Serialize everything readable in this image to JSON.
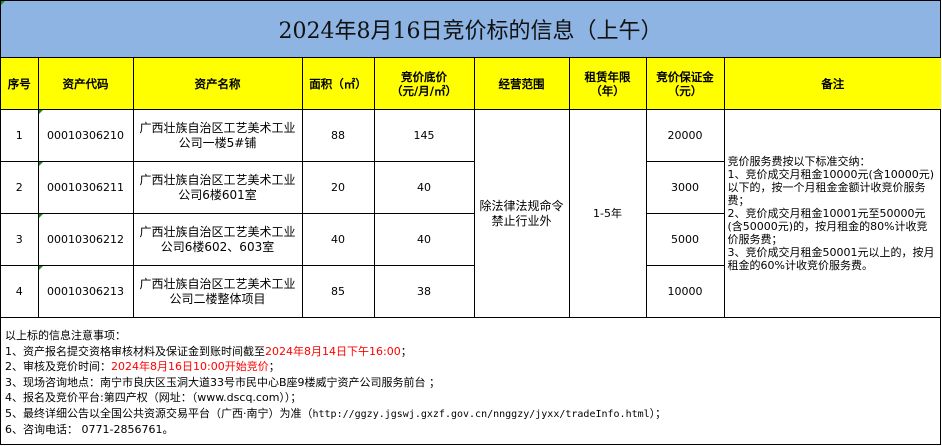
{
  "title": "2024年8月16日竞价标的信息（上午）",
  "headers": [
    "序号",
    "资产代码",
    "资产名称",
    "面积（㎡）",
    "竞价底价\n（元/月/㎡）",
    "经营范围",
    "租赁年限\n（年）",
    "竞价保证金\n（元）",
    "备注"
  ],
  "rows": [
    {
      "no": "1",
      "code": "00010306210",
      "name": "广西壮族自治区工艺美术工业公司一楼5#铺",
      "area": "88",
      "price": "145",
      "deposit": "20000"
    },
    {
      "no": "2",
      "code": "00010306211",
      "name": "广西壮族自治区工艺美术工业公司6楼601室",
      "area": "20",
      "price": "40",
      "deposit": "3000"
    },
    {
      "no": "3",
      "code": "00010306212",
      "name": "广西壮族自治区工艺美术工业公司6楼602、603室",
      "area": "40",
      "price": "40",
      "deposit": "5000"
    },
    {
      "no": "4",
      "code": "00010306213",
      "name": "广西壮族自治区工艺美术工业公司二楼整体项目",
      "area": "85",
      "price": "38",
      "deposit": "10000"
    }
  ],
  "scope": "除法律法规命令禁止行业外",
  "term": "1-5年",
  "remark": "竞价服务费按以下标准交纳：\n1、竞价成交月租金10000元(含10000元)以下的，按一个月租金金额计收竞价服务费；\n2、竞价成交月租金10001元至50000元(含50000元)的，按月租金的80%计收竞价服务费；\n3、竞价成交月租金50001元以上的，按月租金的60%计收竞价服务费。",
  "notes": {
    "heading": "以上标的信息注意事项：",
    "l1a": "1、资产报名提交资格审核材料及保证金到账时间截至",
    "l1b": "2024年8月14日下午16:00",
    "l1c": "；",
    "l2a": "2、审核及竞价时间：",
    "l2b": "2024年8月16日10:00开始竞价",
    "l2c": "；",
    "l3": "3、现场咨询地点：南宁市良庆区玉洞大道33号市民中心B座9楼威宁资产公司服务前台 ；",
    "l4": "4、报名及竞价平台:第四产权（网址：（www.dscq.com））；",
    "l5a": "5、最终详细公告以全国公共资源交易平台（广西·南宁）为准（",
    "l5b": "http://ggzy.jgswj.gxzf.gov.cn/nnggzy/jyxx/tradeInfo.html",
    "l5c": "）；",
    "l6": "6、咨询电话： 0771-2856761。"
  },
  "colors": {
    "title_bg": "#8db4e2",
    "header_bg": "#ffff00",
    "highlight": "#ff0000"
  }
}
